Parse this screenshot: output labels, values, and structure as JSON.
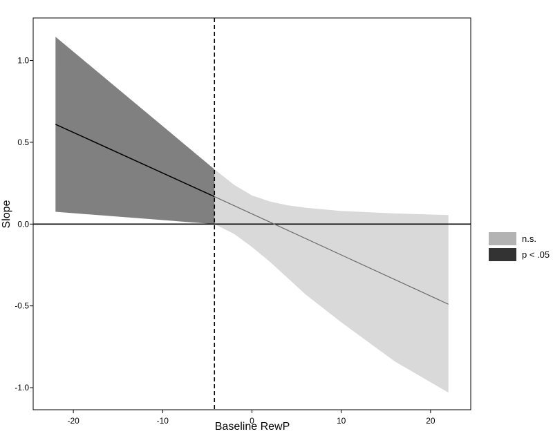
{
  "chart_data": {
    "type": "area",
    "xlabel": "Baseline RewP",
    "ylabel": "Slope",
    "xlim": [
      -24.5,
      24.5
    ],
    "ylim": [
      -1.135,
      1.26
    ],
    "x_ticks": [
      -20,
      -10,
      0,
      10,
      20
    ],
    "x_tick_labels": [
      "-20",
      "-10",
      "0",
      "10",
      "20"
    ],
    "y_ticks": [
      -1.0,
      -0.5,
      0.0,
      0.5,
      1.0
    ],
    "y_tick_labels": [
      "-1.0",
      "-0.5",
      "0.0",
      "0.5",
      "1.0"
    ],
    "grid": false,
    "legend_position": "right",
    "legend": [
      {
        "label": "n.s.",
        "color": "#b3b3b3"
      },
      {
        "label": "p < .05",
        "color": "#333333"
      }
    ],
    "hline_y": 0,
    "vline_x": -4.2,
    "slope_line": {
      "x": [
        -22,
        -4.2,
        22
      ],
      "y": [
        0.61,
        0.168,
        -0.49
      ]
    },
    "significant_band": {
      "color": "#808080",
      "x": [
        -22,
        -4.2
      ],
      "upper": [
        1.145,
        0.335
      ],
      "lower": [
        0.075,
        0.0
      ]
    },
    "nonsignificant_band": {
      "color": "#d9d9d9",
      "x": [
        -4.2,
        -2,
        0,
        2,
        4,
        6,
        10,
        16,
        22
      ],
      "upper": [
        0.335,
        0.24,
        0.175,
        0.138,
        0.115,
        0.1,
        0.08,
        0.065,
        0.055
      ],
      "lower": [
        0.0,
        -0.06,
        -0.14,
        -0.23,
        -0.33,
        -0.43,
        -0.6,
        -0.84,
        -1.03
      ]
    }
  }
}
